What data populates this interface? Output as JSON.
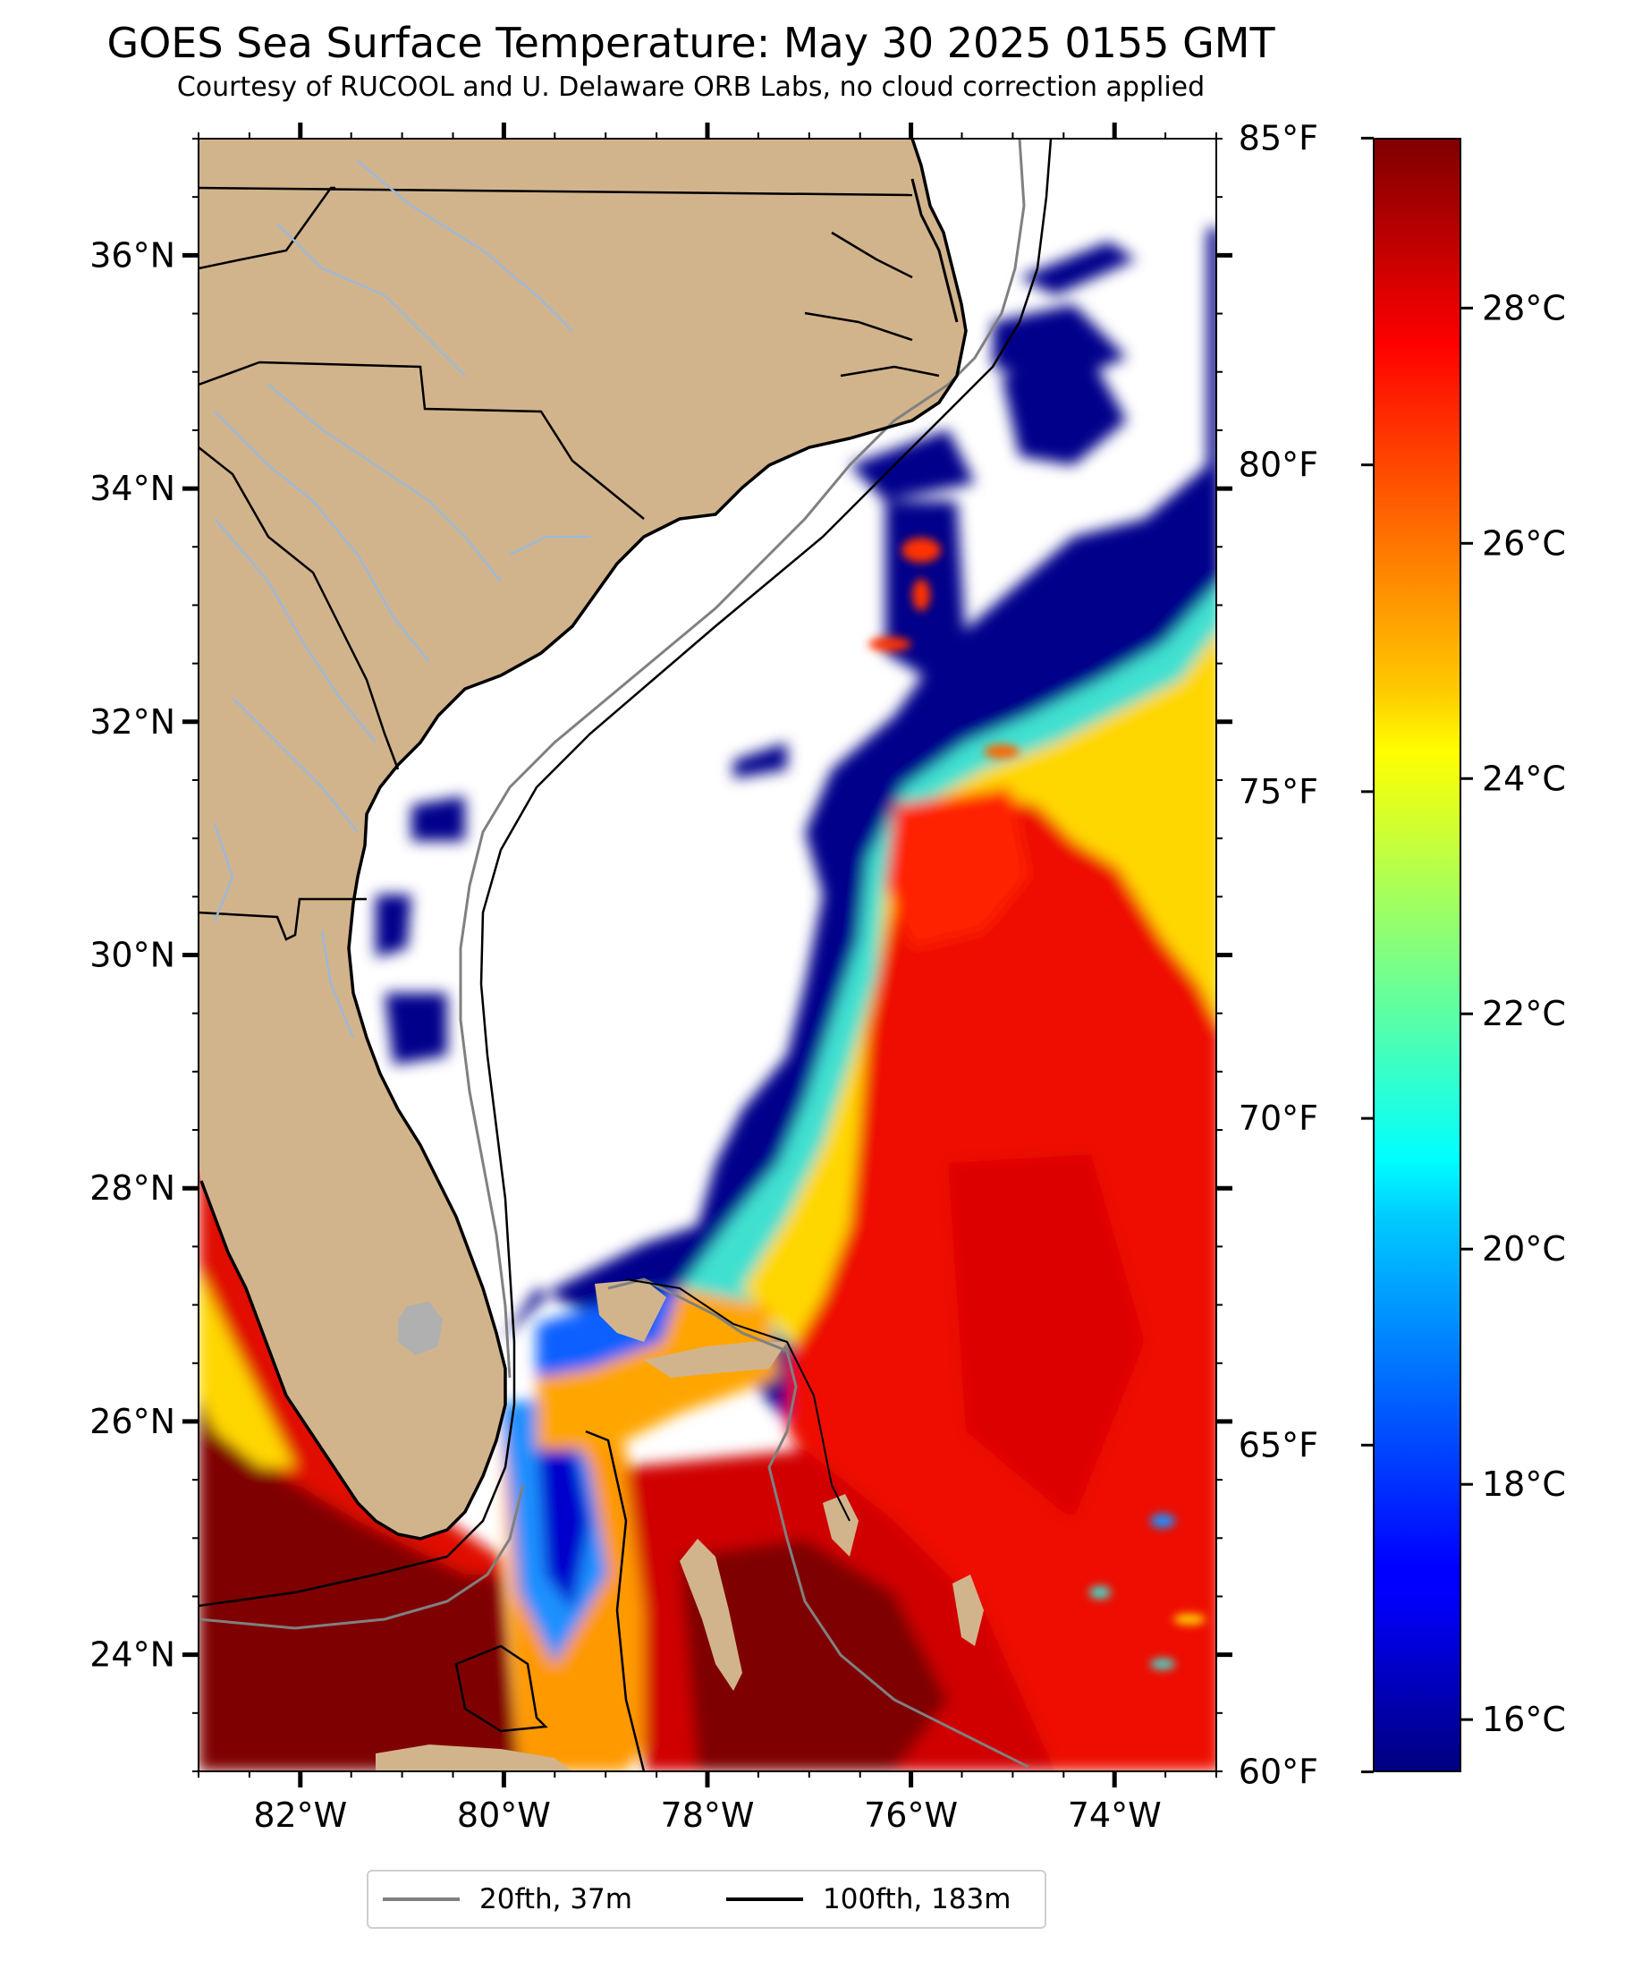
{
  "header": {
    "title": "GOES Sea Surface Temperature: May 30 2025 0155 GMT",
    "subtitle": "Courtesy of RUCOOL and U. Delaware ORB Labs, no cloud correction applied"
  },
  "map": {
    "lon_range": [
      -83,
      -73
    ],
    "lat_range": [
      23,
      37
    ],
    "lat_labels": [
      {
        "value": 36,
        "text": "36°N"
      },
      {
        "value": 34,
        "text": "34°N"
      },
      {
        "value": 32,
        "text": "32°N"
      },
      {
        "value": 30,
        "text": "30°N"
      },
      {
        "value": 28,
        "text": "28°N"
      },
      {
        "value": 26,
        "text": "26°N"
      },
      {
        "value": 24,
        "text": "24°N"
      }
    ],
    "lon_labels": [
      {
        "value": -82,
        "text": "82°W"
      },
      {
        "value": -80,
        "text": "80°W"
      },
      {
        "value": -78,
        "text": "78°W"
      },
      {
        "value": -76,
        "text": "76°W"
      },
      {
        "value": -74,
        "text": "74°W"
      }
    ],
    "colors": {
      "land": "#d2b48c",
      "cloud": "#ffffff",
      "coast": "#000000",
      "rivers": "#9fb8d6",
      "contour_20fth": "#808080",
      "contour_100fth": "#000000"
    }
  },
  "colorbar": {
    "colormap": "jet",
    "celsius_range": [
      15.56,
      29.44
    ],
    "celsius_labels": [
      {
        "value": 28,
        "text": "28°C"
      },
      {
        "value": 26,
        "text": "26°C"
      },
      {
        "value": 24,
        "text": "24°C"
      },
      {
        "value": 22,
        "text": "22°C"
      },
      {
        "value": 20,
        "text": "20°C"
      },
      {
        "value": 18,
        "text": "18°C"
      },
      {
        "value": 16,
        "text": "16°C"
      }
    ],
    "fahrenheit_labels": [
      {
        "value": 85,
        "text": "85°F"
      },
      {
        "value": 80,
        "text": "80°F"
      },
      {
        "value": 75,
        "text": "75°F"
      },
      {
        "value": 70,
        "text": "70°F"
      },
      {
        "value": 65,
        "text": "65°F"
      },
      {
        "value": 60,
        "text": "60°F"
      }
    ]
  },
  "legend": {
    "items": [
      {
        "label": "20fth, 37m",
        "color": "#808080"
      },
      {
        "label": "100fth, 183m",
        "color": "#000000"
      }
    ]
  }
}
